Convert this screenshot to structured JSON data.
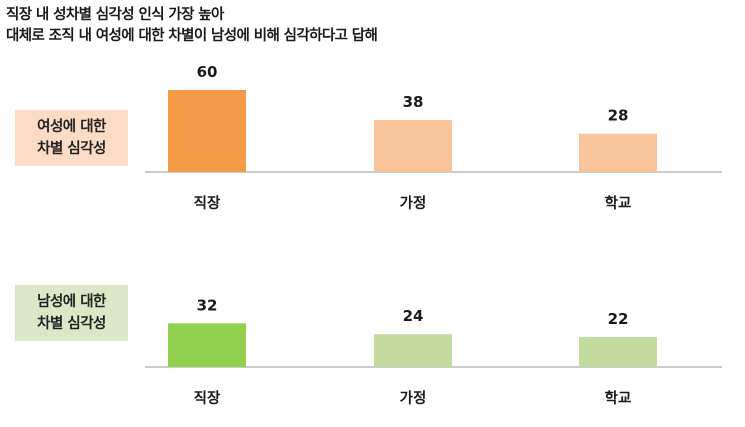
{
  "header": {
    "title": "직장 내 성차별 심각성 인식 가장 높아",
    "subtitle": "대체로 조직 내 여성에 대한 차별이 남성에 비해 심각하다고 답해"
  },
  "chart_data": [
    {
      "type": "bar",
      "label": "여성에 대한\n차별 심각성",
      "categories": [
        "직장",
        "가정",
        "학교"
      ],
      "values": [
        60,
        38,
        28
      ],
      "colors": [
        "#f49b47",
        "#f8c49b",
        "#f8c49b"
      ],
      "label_bg": "#fddcc6",
      "ylim": [
        0,
        60
      ]
    },
    {
      "type": "bar",
      "label": "남성에 대한\n차별 심각성",
      "categories": [
        "직장",
        "가정",
        "학교"
      ],
      "values": [
        32,
        24,
        22
      ],
      "colors": [
        "#92d050",
        "#c4dba0",
        "#c4dba0"
      ],
      "label_bg": "#dbe8c8",
      "ylim": [
        0,
        60
      ]
    }
  ]
}
